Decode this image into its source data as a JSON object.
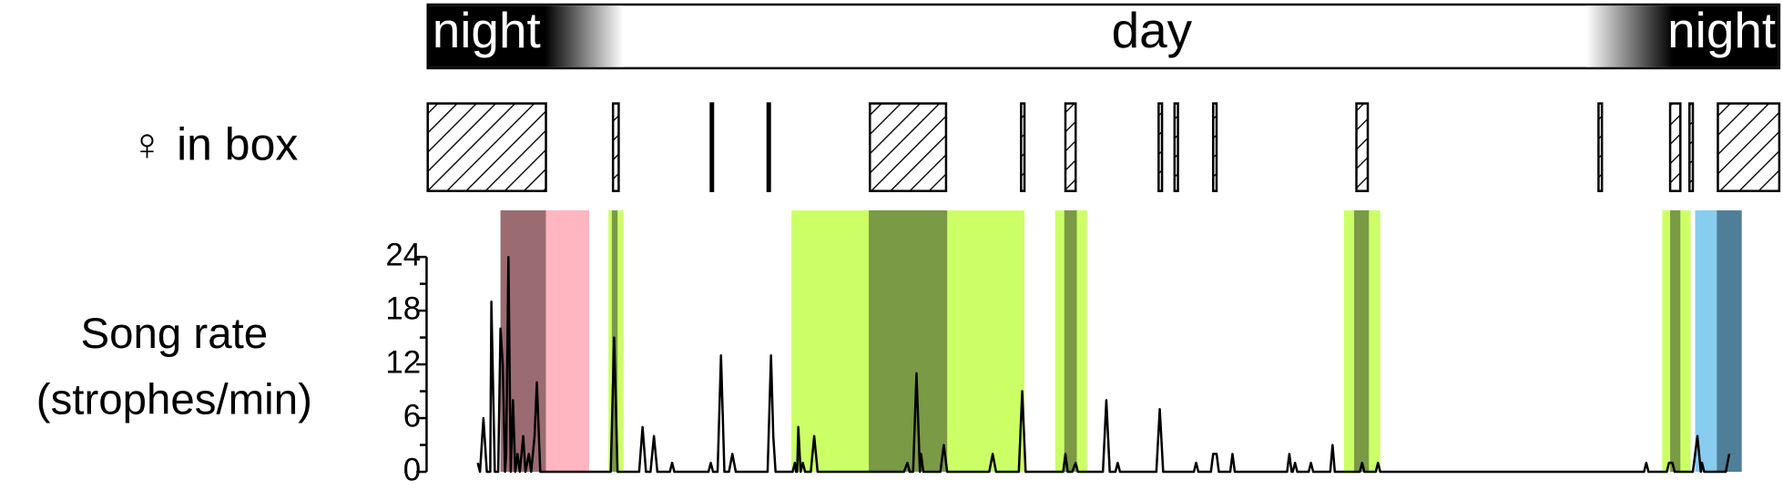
{
  "chart_data": {
    "type": "line",
    "daynight": {
      "labels": [
        "night",
        "day",
        "night"
      ]
    },
    "female_in_box": {
      "label": "♀ in box",
      "intervals": [
        [
          1,
          105
        ],
        [
          164,
          169
        ],
        [
          250,
          252
        ],
        [
          300,
          302
        ],
        [
          390,
          457
        ],
        [
          523,
          526
        ],
        [
          562,
          571
        ],
        [
          644,
          647
        ],
        [
          658,
          661
        ],
        [
          692,
          695
        ],
        [
          818,
          828
        ],
        [
          1031,
          1034
        ],
        [
          1094,
          1103
        ],
        [
          1111,
          1114
        ],
        [
          1136,
          1190
        ]
      ]
    },
    "ylabel": [
      "Song rate",
      "(strophes/min)"
    ],
    "periods": [
      {
        "start": 65,
        "end": 105,
        "color": "#9b6b72"
      },
      {
        "start": 105,
        "end": 143,
        "color": "#ffb6c1"
      },
      {
        "start": 160,
        "end": 173,
        "color": "#ccff66"
      },
      {
        "start": 163,
        "end": 168,
        "color": "#7a9a45"
      },
      {
        "start": 321,
        "end": 526,
        "color": "#ccff66"
      },
      {
        "start": 389,
        "end": 458,
        "color": "#7a9a45"
      },
      {
        "start": 553,
        "end": 581,
        "color": "#ccff66"
      },
      {
        "start": 561,
        "end": 572,
        "color": "#7a9a45"
      },
      {
        "start": 807,
        "end": 839,
        "color": "#ccff66"
      },
      {
        "start": 816,
        "end": 829,
        "color": "#7a9a45"
      },
      {
        "start": 1087,
        "end": 1112,
        "color": "#ccff66"
      },
      {
        "start": 1094,
        "end": 1103,
        "color": "#7a9a45"
      },
      {
        "start": 1116,
        "end": 1135,
        "color": "#88ccf0"
      },
      {
        "start": 1135,
        "end": 1157,
        "color": "#4f7e99"
      }
    ],
    "x": [
      45,
      47,
      50,
      53,
      56,
      57,
      60,
      63,
      65,
      67,
      69,
      70,
      72,
      74,
      76,
      78,
      80,
      82,
      85,
      87,
      90,
      92,
      95,
      97,
      100,
      162,
      165,
      168,
      187,
      190,
      193,
      197,
      200,
      203,
      214,
      216,
      218,
      248,
      250,
      252,
      256,
      259,
      262,
      266,
      269,
      272,
      300,
      303,
      305,
      307,
      322,
      324,
      325,
      326,
      327,
      329,
      331,
      333,
      338,
      341,
      344,
      420,
      423,
      425,
      428,
      431,
      434,
      435,
      437,
      452,
      455,
      458,
      495,
      498,
      501,
      521,
      524,
      527,
      560,
      562,
      564,
      568,
      571,
      573,
      595,
      598,
      601,
      606,
      608,
      610,
      642,
      645,
      648,
      675,
      677,
      679,
      690,
      692,
      695,
      697,
      707,
      709,
      711,
      757,
      759,
      761,
      762,
      764,
      766,
      776,
      778,
      780,
      795,
      797,
      799,
      821,
      823,
      825,
      835,
      837,
      839,
      1071,
      1073,
      1075,
      1091,
      1093,
      1096,
      1098,
      1114,
      1118,
      1121,
      1122,
      1124,
      1143,
      1146
    ],
    "series": [
      {
        "color": "#000000",
        "values": [
          1,
          0,
          6,
          0,
          0,
          19,
          0,
          0,
          16,
          12,
          0,
          2,
          24,
          0,
          8,
          0,
          2,
          0,
          4,
          0,
          2,
          0,
          4,
          10,
          0,
          0,
          15,
          0,
          0,
          5,
          0,
          0,
          4,
          0,
          0,
          1,
          0,
          0,
          1,
          0,
          0,
          13,
          0,
          0,
          2,
          0,
          0,
          13,
          4,
          0,
          0,
          1,
          0,
          0,
          5,
          0,
          1,
          0,
          0,
          4,
          0,
          0,
          1,
          0,
          0,
          11,
          0,
          2,
          0,
          0,
          3,
          0,
          0,
          2,
          0,
          0,
          9,
          0,
          0,
          2,
          0,
          0,
          1,
          0,
          0,
          8,
          0,
          0,
          1,
          0,
          0,
          7,
          0,
          0,
          1,
          0,
          0,
          2,
          2,
          0,
          0,
          2,
          0,
          0,
          2,
          0,
          0,
          1,
          0,
          0,
          1,
          0,
          0,
          3,
          0,
          0,
          1,
          0,
          0,
          1,
          0,
          0,
          1,
          0,
          0,
          1,
          1,
          0,
          0,
          4,
          0,
          1,
          0,
          0,
          2
        ]
      }
    ],
    "xlim": [
      0,
      1190
    ],
    "ylim": [
      0,
      24
    ],
    "yticks": [
      0,
      6,
      12,
      18,
      24
    ],
    "minor_yticks": [
      3,
      9,
      15,
      21
    ]
  }
}
